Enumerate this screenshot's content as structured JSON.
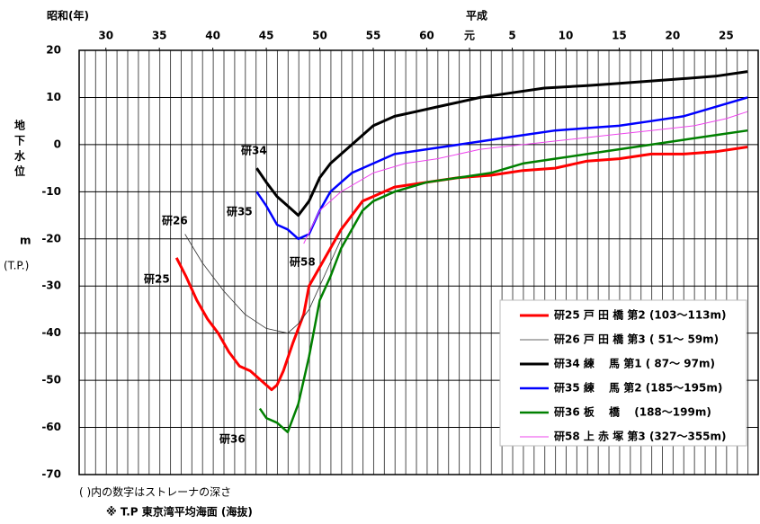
{
  "chart_data": {
    "type": "line",
    "title_x": "昭和(年)",
    "title_x2": "平成",
    "ylabel": [
      "地",
      "下",
      "水",
      "位"
    ],
    "yunit": "m",
    "yref": "(T.P.)",
    "notes": [
      "(  )内の数字はストレーナの深さ",
      "※ T.P 東京湾平均海面 (海抜)"
    ],
    "xlim": [
      1952.5,
      2016
    ],
    "xticks": [
      {
        "value": 1955,
        "label": "30"
      },
      {
        "value": 1960,
        "label": "35"
      },
      {
        "value": 1965,
        "label": "40"
      },
      {
        "value": 1970,
        "label": "45"
      },
      {
        "value": 1975,
        "label": "50"
      },
      {
        "value": 1980,
        "label": "55"
      },
      {
        "value": 1985,
        "label": "60"
      },
      {
        "value": 1989,
        "label": "元"
      },
      {
        "value": 1993,
        "label": "5"
      },
      {
        "value": 1998,
        "label": "10"
      },
      {
        "value": 2003,
        "label": "15"
      },
      {
        "value": 2008,
        "label": "20"
      },
      {
        "value": 2013,
        "label": "25"
      }
    ],
    "ylim": [
      -70,
      20
    ],
    "yticks": [
      20,
      10,
      0,
      -10,
      -20,
      -30,
      -40,
      -50,
      -60,
      -70
    ],
    "grid": true,
    "legend": "bottom-right",
    "annotations": [
      "研34",
      "研35",
      "研26",
      "研25",
      "研58",
      "研36"
    ],
    "series": [
      {
        "name": "研25 戸 田 橋 第2 (103～113m)",
        "color": "#ff0000",
        "x": [
          1961.6,
          1962.5,
          1963.5,
          1964.5,
          1965.5,
          1966.5,
          1967.5,
          1968.5,
          1969.5,
          1970.5,
          1971,
          1971.6,
          1972.5,
          1973.5,
          1974,
          1975,
          1976,
          1977,
          1978,
          1979,
          1980,
          1982,
          1985,
          1988,
          1991,
          1994,
          1997,
          2000,
          2003,
          2006,
          2009,
          2012,
          2015
        ],
        "values": [
          -24,
          -28,
          -33,
          -37,
          -40,
          -44,
          -47,
          -48,
          -50,
          -52,
          -51,
          -48,
          -42,
          -36,
          -30,
          -26,
          -22,
          -18,
          -15,
          -12,
          -11,
          -9,
          -8,
          -7,
          -6.5,
          -5.5,
          -5,
          -3.5,
          -3,
          -2,
          -2,
          -1.5,
          -0.5
        ]
      },
      {
        "name": "研26 戸 田 橋 第3 ( 51～ 59m)",
        "color": "#333333",
        "x": [
          1962.4,
          1964,
          1966,
          1968,
          1970,
          1972,
          1973,
          1974,
          1975,
          1976,
          1977
        ],
        "values": [
          -19,
          -25,
          -31,
          -36,
          -39,
          -40,
          -38,
          -35,
          -30,
          -25,
          -20
        ]
      },
      {
        "name": "研34 練　 馬 第1 ( 87～ 97m)",
        "color": "#000000",
        "x": [
          1969.1,
          1970,
          1971,
          1972,
          1973,
          1974,
          1975,
          1976,
          1977,
          1978,
          1979,
          1980,
          1982,
          1984,
          1986,
          1988,
          1990,
          1993,
          1996,
          2000,
          2003,
          2006,
          2009,
          2012,
          2015
        ],
        "values": [
          -5,
          -8,
          -11,
          -13,
          -15,
          -12,
          -7,
          -4,
          -2,
          0,
          2,
          4,
          6,
          7,
          8,
          9,
          10,
          11,
          12,
          12.5,
          13,
          13.5,
          14,
          14.5,
          15.5
        ]
      },
      {
        "name": "研35 練　 馬 第2 (185～195m)",
        "color": "#0000ff",
        "x": [
          1969.1,
          1970,
          1971,
          1972,
          1973,
          1974,
          1975,
          1976,
          1977,
          1978,
          1980,
          1982,
          1985,
          1988,
          1991,
          1994,
          1997,
          2000,
          2003,
          2006,
          2009,
          2012,
          2015
        ],
        "values": [
          -10,
          -13,
          -17,
          -18,
          -20,
          -19,
          -14,
          -10,
          -8,
          -6,
          -4,
          -2,
          -1,
          0,
          1,
          2,
          3,
          3.5,
          4,
          5,
          6,
          8,
          10
        ]
      },
      {
        "name": "研36 板　 橋　 (188～199m)",
        "color": "#008000",
        "x": [
          1969.4,
          1970,
          1971,
          1972,
          1973,
          1974,
          1975,
          1976,
          1977,
          1978,
          1979,
          1980,
          1982,
          1985,
          1988,
          1991,
          1994,
          1997,
          2000,
          2003,
          2006,
          2009,
          2012,
          2015
        ],
        "values": [
          -56,
          -58,
          -59,
          -61,
          -55,
          -45,
          -33,
          -28,
          -22,
          -18,
          -14,
          -12,
          -10,
          -8,
          -7,
          -6,
          -4,
          -3,
          -2,
          -1,
          0,
          1,
          2,
          3
        ]
      },
      {
        "name": "研58 上 赤 塚 第3 (327～355m)",
        "color": "#ee44ee",
        "x": [
          1973.5,
          1975,
          1977,
          1980,
          1983,
          1986,
          1990,
          1994,
          1998,
          2002,
          2006,
          2010,
          2013,
          2015
        ],
        "values": [
          -21,
          -14,
          -10,
          -6,
          -4,
          -3,
          -1,
          0,
          1,
          2,
          3,
          4,
          5.5,
          7
        ]
      }
    ]
  }
}
